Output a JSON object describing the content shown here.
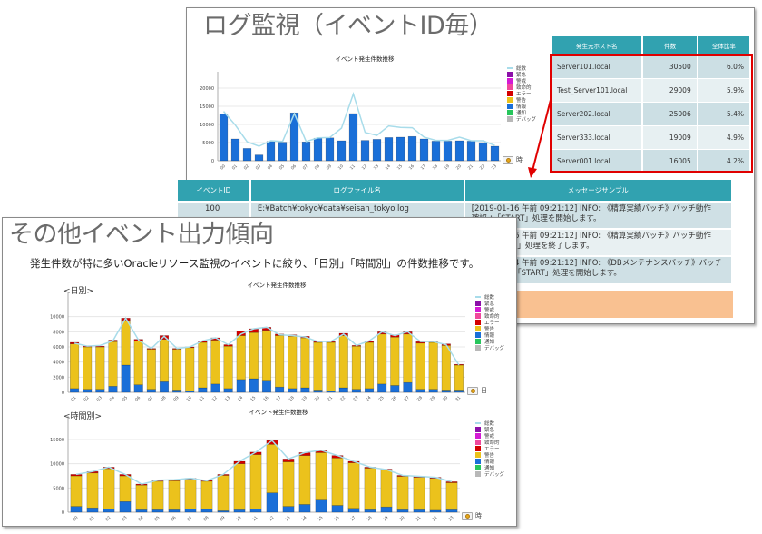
{
  "back_panel": {
    "title": "ログ監視（イベントID毎）",
    "chart": {
      "title": "イベント発生件数推移",
      "x_unit": "時"
    },
    "host_table": {
      "headers": [
        "発生元ホスト名",
        "件数",
        "全体比率"
      ],
      "rows": [
        {
          "host": "Server101.local",
          "count": "30500",
          "ratio": "6.0%"
        },
        {
          "host": "Test_Server101.local",
          "count": "29009",
          "ratio": "5.9%"
        },
        {
          "host": "Server202.local",
          "count": "25006",
          "ratio": "5.4%"
        },
        {
          "host": "Server333.local",
          "count": "19009",
          "ratio": "4.9%"
        },
        {
          "host": "Server001.local",
          "count": "16005",
          "ratio": "4.2%"
        }
      ],
      "highlight_color": "#e00000"
    },
    "event_table": {
      "headers": [
        "イベントID",
        "ログファイル名",
        "メッセージサンプル"
      ],
      "rows": [
        {
          "id": "100",
          "file": "E:¥Batch¥tokyo¥data¥seisan_tokyo.log",
          "msg1": "[2019-01-16 午前 09:21:12] INFO: 《精算実績バッチ》バッチ動作",
          "msg2": "確認 ：「START」処理を開始します。"
        },
        {
          "id": "",
          "file": "",
          "msg1": "[2019-01-16 午前 09:21:12] INFO: 《精算実績バッチ》バッチ動作",
          "msg2": "確認 ：「END」処理を終了します。"
        },
        {
          "id": "",
          "file": "",
          "msg1": "[2019-02-14 午前 09:21:12] INFO: 《DBメンテナンスバッチ》バッチ",
          "msg2": "動作確認2 ：「START」処理を開始します。"
        }
      ]
    }
  },
  "front_panel": {
    "title": "その他イベント出力傾向",
    "subtitle": "発生件数が特に多いOracleリソース監視のイベントに絞り、「日別」「時間別」の件数推移です。",
    "daily_label": "<日別>",
    "hourly_label": "<時間別>",
    "daily_chart": {
      "title": "イベント発生件数推移",
      "x_unit": "日"
    },
    "hourly_chart": {
      "title": "イベント発生件数推移",
      "x_unit": "時"
    }
  },
  "legend": [
    {
      "label": "総数",
      "color": "#a8dcea",
      "type": "line"
    },
    {
      "label": "緊急",
      "color": "#8b10a8",
      "type": "box"
    },
    {
      "label": "警戒",
      "color": "#d41ad4",
      "type": "box"
    },
    {
      "label": "致命的",
      "color": "#f0489c",
      "type": "box"
    },
    {
      "label": "エラー",
      "color": "#d40000",
      "type": "box"
    },
    {
      "label": "警告",
      "color": "#ebc21c",
      "type": "box"
    },
    {
      "label": "情報",
      "color": "#1a6fd8",
      "type": "box"
    },
    {
      "label": "通知",
      "color": "#27c65c",
      "type": "box"
    },
    {
      "label": "デバッグ",
      "color": "#b8b8b8",
      "type": "box"
    }
  ],
  "chart_data": [
    {
      "type": "bar",
      "title": "イベント発生件数推移",
      "xlabel": "時",
      "ylabel": "",
      "ylim": [
        0,
        22000
      ],
      "yticks": [
        0,
        5000,
        10000,
        15000,
        20000
      ],
      "categories": [
        "00",
        "01",
        "02",
        "03",
        "04",
        "05",
        "06",
        "07",
        "08",
        "09",
        "10",
        "11",
        "12",
        "13",
        "14",
        "15",
        "16",
        "17",
        "18",
        "19",
        "20",
        "21",
        "22",
        "23"
      ],
      "series": [
        {
          "name": "情報",
          "values": [
            12800,
            6000,
            3400,
            1600,
            5300,
            5100,
            13200,
            5200,
            6200,
            6300,
            5500,
            13000,
            5600,
            5900,
            6400,
            6500,
            6700,
            6000,
            5400,
            5400,
            5500,
            5400,
            5000,
            4000
          ]
        },
        {
          "name": "総数",
          "values": [
            13600,
            9800,
            5200,
            4000,
            5500,
            5300,
            13000,
            5300,
            6300,
            6400,
            9000,
            18400,
            7800,
            7000,
            9600,
            9200,
            9100,
            6500,
            5600,
            5600,
            6500,
            5500,
            5500,
            4200
          ]
        }
      ],
      "legend_position": "right",
      "grid": true
    },
    {
      "type": "bar",
      "title": "イベント発生件数推移",
      "xlabel": "日",
      "ylim": [
        0,
        12000
      ],
      "yticks": [
        0,
        2000,
        4000,
        6000,
        8000,
        10000
      ],
      "categories": [
        "01",
        "02",
        "03",
        "04",
        "05",
        "06",
        "07",
        "08",
        "09",
        "10",
        "11",
        "12",
        "13",
        "14",
        "15",
        "16",
        "17",
        "18",
        "19",
        "20",
        "21",
        "22",
        "23",
        "24",
        "25",
        "26",
        "27",
        "28",
        "29",
        "30",
        "31"
      ],
      "series": [
        {
          "name": "情報",
          "values": [
            500,
            400,
            400,
            800,
            3600,
            1000,
            400,
            1400,
            300,
            200,
            600,
            1100,
            500,
            1700,
            1800,
            1600,
            700,
            500,
            600,
            300,
            200,
            600,
            400,
            500,
            1100,
            900,
            1300,
            400,
            400,
            300,
            300
          ]
        },
        {
          "name": "警告",
          "values": [
            5900,
            5600,
            5600,
            5900,
            5900,
            5800,
            5300,
            5600,
            5400,
            5700,
            6000,
            5800,
            5600,
            5800,
            6100,
            6600,
            6800,
            6900,
            6600,
            6300,
            6400,
            6900,
            5700,
            6100,
            6600,
            6400,
            6400,
            6100,
            6200,
            5900,
            3300
          ]
        },
        {
          "name": "エラー",
          "values": [
            200,
            100,
            100,
            200,
            300,
            200,
            100,
            500,
            100,
            100,
            200,
            300,
            200,
            600,
            500,
            400,
            200,
            200,
            200,
            100,
            100,
            300,
            100,
            200,
            300,
            300,
            300,
            200,
            100,
            200,
            100
          ]
        },
        {
          "name": "総数",
          "values": [
            6500,
            6100,
            6200,
            6800,
            9800,
            6900,
            5800,
            7400,
            5800,
            6000,
            6800,
            7200,
            6300,
            7700,
            8400,
            8600,
            7600,
            7500,
            7300,
            6700,
            6700,
            7700,
            6200,
            6800,
            8000,
            7500,
            8000,
            6700,
            6700,
            6300,
            3600
          ]
        }
      ],
      "legend_position": "right",
      "grid": true
    },
    {
      "type": "bar",
      "title": "イベント発生件数推移",
      "xlabel": "時",
      "ylim": [
        0,
        18000
      ],
      "yticks": [
        0,
        5000,
        10000,
        15000
      ],
      "categories": [
        "00",
        "01",
        "02",
        "03",
        "04",
        "05",
        "06",
        "07",
        "08",
        "09",
        "10",
        "11",
        "12",
        "13",
        "14",
        "15",
        "16",
        "17",
        "18",
        "19",
        "20",
        "21",
        "22",
        "23"
      ],
      "series": [
        {
          "name": "情報",
          "values": [
            1200,
            900,
            700,
            2200,
            500,
            500,
            500,
            700,
            600,
            300,
            500,
            700,
            4000,
            1200,
            1600,
            2500,
            1400,
            800,
            500,
            1100,
            500,
            500,
            400,
            500
          ]
        },
        {
          "name": "警告",
          "values": [
            6300,
            7200,
            8300,
            5300,
            5100,
            5900,
            6000,
            6100,
            5800,
            7300,
            9500,
            11200,
            10000,
            9200,
            10100,
            9800,
            9800,
            9400,
            8600,
            7600,
            6900,
            6700,
            6600,
            5600
          ]
        },
        {
          "name": "エラー",
          "values": [
            300,
            300,
            300,
            300,
            200,
            200,
            200,
            200,
            200,
            200,
            500,
            500,
            800,
            600,
            600,
            500,
            500,
            300,
            200,
            200,
            200,
            200,
            200,
            200
          ]
        },
        {
          "name": "総数",
          "values": [
            7800,
            8400,
            9300,
            7800,
            5800,
            6600,
            6700,
            7000,
            6500,
            7800,
            10500,
            12400,
            14800,
            11000,
            12300,
            12800,
            11700,
            10500,
            9300,
            8800,
            7600,
            7400,
            7200,
            6300
          ]
        }
      ],
      "legend_position": "right",
      "grid": true
    }
  ]
}
